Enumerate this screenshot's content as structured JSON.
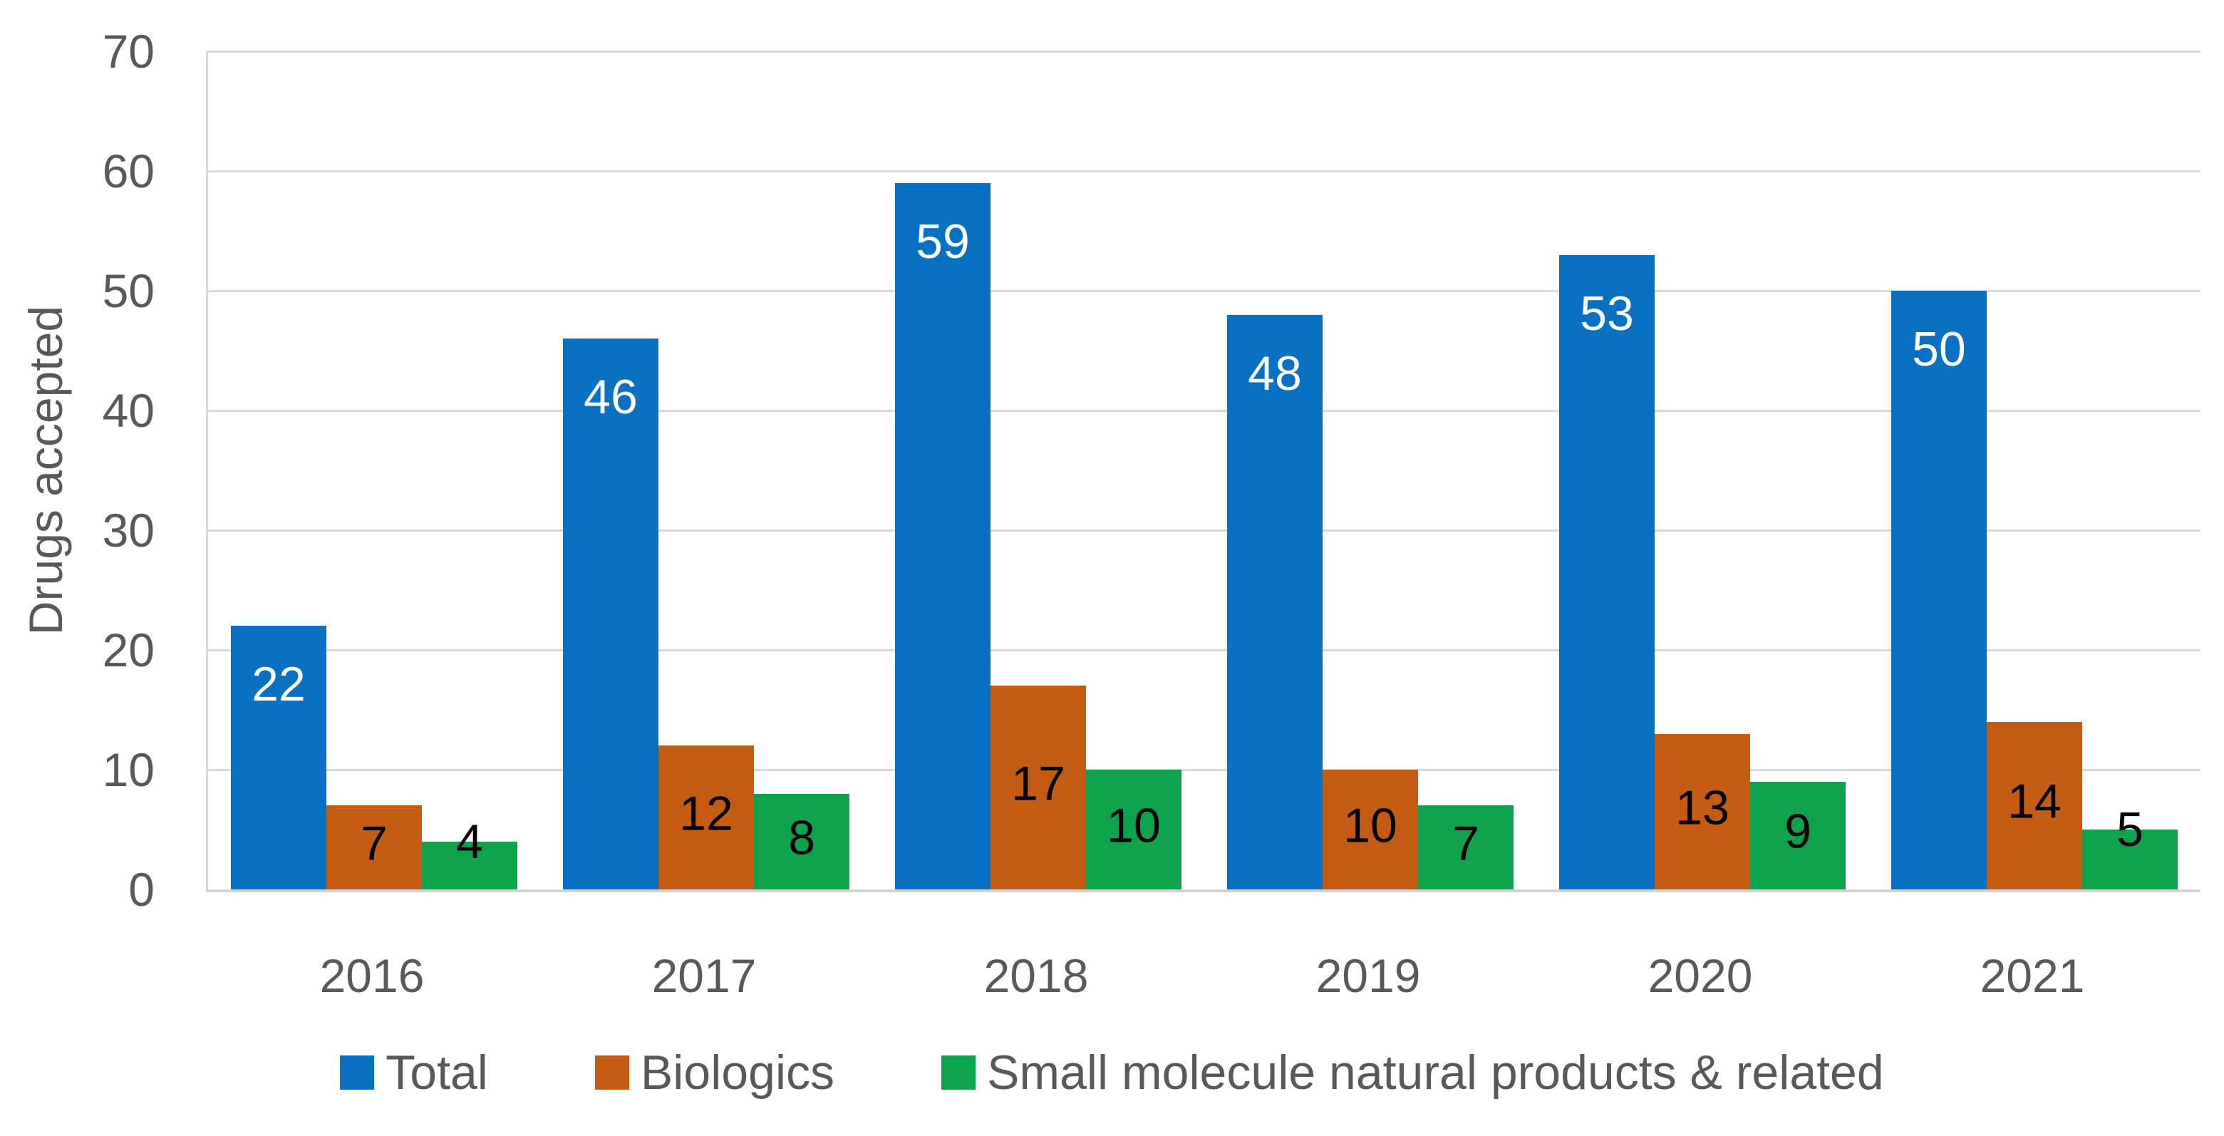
{
  "chart_data": {
    "type": "bar",
    "title": "",
    "categories": [
      "2016",
      "2017",
      "2018",
      "2019",
      "2020",
      "2021"
    ],
    "series": [
      {
        "name": "Total",
        "color": "#0A71C2",
        "values": [
          22,
          46,
          59,
          48,
          53,
          50
        ],
        "label_color": "#FFFFFF",
        "label_placement": "inside-top"
      },
      {
        "name": "Biologics",
        "color": "#C45B13",
        "values": [
          7,
          12,
          17,
          10,
          13,
          14
        ],
        "label_color": "#000000",
        "label_placement": "center"
      },
      {
        "name": "Small molecule natural products & related",
        "color": "#0EA24D",
        "values": [
          4,
          8,
          10,
          7,
          9,
          5
        ],
        "label_color": "#000000",
        "label_placement": "center"
      }
    ],
    "xlabel": "",
    "ylabel": "Drugs accepted",
    "ylim": [
      0,
      70
    ],
    "ytick_step": 10,
    "yticks": [
      "0",
      "10",
      "20",
      "30",
      "40",
      "50",
      "60",
      "70"
    ],
    "grid": true,
    "legend_position": "bottom",
    "styles": {
      "gridline_color": "#D9D9D9",
      "axis_line_color": "#D2D2D2",
      "axis_text_color": "#595959"
    }
  }
}
